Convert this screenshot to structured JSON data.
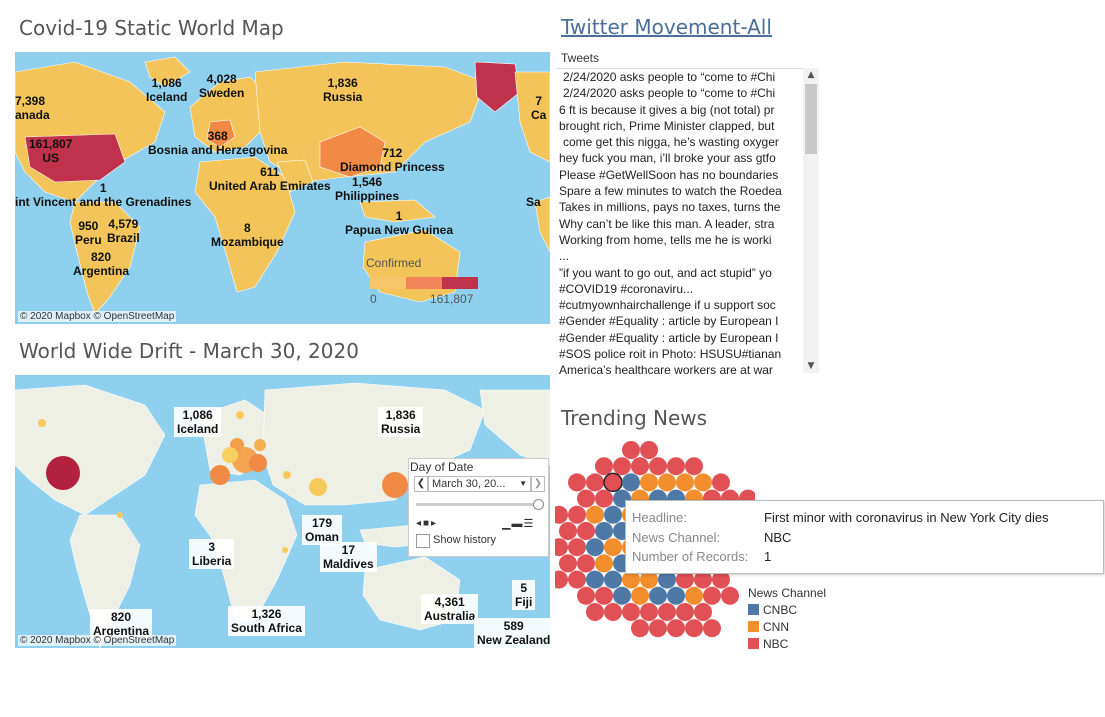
{
  "colors": {
    "land": "#f2c45a",
    "ocean": "#8fd0ee",
    "us_red": "#c0314c",
    "nbc": "#e05055",
    "cnn": "#f28e2b",
    "cnbc": "#4e79a7"
  },
  "static_map": {
    "title": "Covid-19 Static World Map",
    "credit": "© 2020 Mapbox © OpenStreetMap",
    "legend_title": "Confirmed",
    "legend_min": "0",
    "legend_max": "161,807",
    "labels": [
      {
        "value": "7,398",
        "name": "anada"
      },
      {
        "value": "1,086",
        "name": "Iceland"
      },
      {
        "value": "4,028",
        "name": "Sweden"
      },
      {
        "value": "1,836",
        "name": "Russia"
      },
      {
        "value": "161,807",
        "name": "US"
      },
      {
        "value": "368",
        "name": "Bosnia and Herzegovina"
      },
      {
        "value": "712",
        "name": "Diamond Princess"
      },
      {
        "value": "611",
        "name": "United Arab Emirates"
      },
      {
        "value": "1,546",
        "name": "Philippines"
      },
      {
        "value": "1",
        "name": "int Vincent and the Grenadines"
      },
      {
        "value": "1",
        "name": "Papua New Guinea"
      },
      {
        "value": "950",
        "name": "Peru"
      },
      {
        "value": "4,579",
        "name": "Brazil"
      },
      {
        "value": "8",
        "name": "Mozambique"
      },
      {
        "value": "820",
        "name": "Argentina"
      },
      {
        "value": "7",
        "name": "Ca"
      },
      {
        "value": "",
        "name": "Sa"
      }
    ]
  },
  "drift_map": {
    "title": "World Wide Drift - March 30, 2020",
    "credit": "© 2020 Mapbox © OpenStreetMap",
    "labels": [
      {
        "value": "1,086",
        "name": "Iceland"
      },
      {
        "value": "1,836",
        "name": "Russia"
      },
      {
        "value": "179",
        "name": "Oman"
      },
      {
        "value": "3",
        "name": "Liberia"
      },
      {
        "value": "17",
        "name": "Maldives"
      },
      {
        "value": "1,326",
        "name": "South Africa"
      },
      {
        "value": "820",
        "name": "Argentina"
      },
      {
        "value": "4,361",
        "name": "Australia"
      },
      {
        "value": "5",
        "name": "Fiji"
      },
      {
        "value": "589",
        "name": "New Zealand"
      }
    ],
    "day_widget": {
      "title": "Day of Date",
      "value": "March 30, 20...",
      "show_history": "Show history"
    }
  },
  "tweets": {
    "title": "Twitter Movement-All",
    "header": "Tweets",
    "items": [
      " 2/24/2020 asks people to “come to #Chi",
      " 2/24/2020 asks people to “come to #Chi",
      "6 ft is because it gives a big (not total) pr",
      "brought rich, Prime Minister clapped, but",
      " come get this nigga, he’s wasting oxyger",
      "hey  fuck you man, i’ll broke your ass gtfo",
      "Please #GetWellSoon has no boundaries",
      "Spare a few minutes to watch the Roedea",
      "Takes in millions, pays no taxes, turns the",
      "Why can’t  be like this man. A leader, stra",
      "Working from home,   tells me he is worki",
      "...",
      "”if you want to go out, and act stupid” yo",
      "#COVID19 #coronaviru...",
      "#cutmyownhairchallenge if u support soc",
      "#Gender #Equality : article by European I",
      "#Gender #Equality : article by European I",
      "#SOS police roit in Photo: HSUSU#tianan",
      "America’s healthcare workers are at war"
    ]
  },
  "trending": {
    "title": "Trending News",
    "tooltip": {
      "headline_key": "Headline:",
      "headline_val": "First minor with coronavirus in New York City dies",
      "channel_key": "News Channel:",
      "channel_val": "NBC",
      "records_key": "Number of Records:",
      "records_val": "1"
    },
    "legend_title": "News Channel",
    "legend": [
      {
        "name": "CNBC",
        "color": "#4e79a7"
      },
      {
        "name": "CNN",
        "color": "#f28e2b"
      },
      {
        "name": "NBC",
        "color": "#e05055"
      }
    ]
  }
}
